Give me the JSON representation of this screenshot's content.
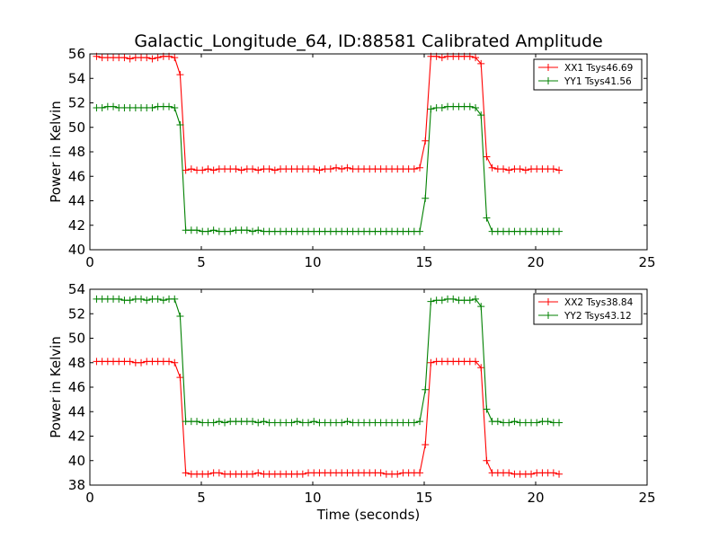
{
  "chart_data": [
    {
      "type": "line",
      "title": "Galactic_Longitude_64, ID:88581 Calibrated Amplitude",
      "xlabel": "",
      "ylabel": "Power in Kelvin",
      "xlim": [
        0,
        25
      ],
      "ylim": [
        40,
        56
      ],
      "xticks": [
        0,
        5,
        10,
        15,
        20,
        25
      ],
      "yticks": [
        40,
        42,
        44,
        46,
        48,
        50,
        52,
        54,
        56
      ],
      "grid": false,
      "legend_position": "top-right",
      "series": [
        {
          "name": "XX1 Tsys46.69",
          "color": "#ff0000",
          "marker": "+",
          "x": [
            0.3,
            0.55,
            0.8,
            1.05,
            1.3,
            1.55,
            1.8,
            2.05,
            2.3,
            2.55,
            2.8,
            3.05,
            3.3,
            3.55,
            3.8,
            4.05,
            4.3,
            4.55,
            4.8,
            5.05,
            5.3,
            5.55,
            5.8,
            6.05,
            6.3,
            6.55,
            6.8,
            7.05,
            7.3,
            7.55,
            7.8,
            8.05,
            8.3,
            8.55,
            8.8,
            9.05,
            9.3,
            9.55,
            9.8,
            10.05,
            10.3,
            10.55,
            10.8,
            11.05,
            11.3,
            11.55,
            11.8,
            12.05,
            12.3,
            12.55,
            12.8,
            13.05,
            13.3,
            13.55,
            13.8,
            14.05,
            14.3,
            14.55,
            14.8,
            15.05,
            15.3,
            15.55,
            15.8,
            16.05,
            16.3,
            16.55,
            16.8,
            17.05,
            17.3,
            17.55,
            17.8,
            18.05,
            18.3,
            18.55,
            18.8,
            19.05,
            19.3,
            19.55,
            19.8,
            20.05,
            20.3,
            20.55,
            20.8,
            21.05
          ],
          "y": [
            55.8,
            55.7,
            55.7,
            55.7,
            55.7,
            55.7,
            55.6,
            55.7,
            55.7,
            55.7,
            55.6,
            55.7,
            55.8,
            55.8,
            55.7,
            54.3,
            46.5,
            46.6,
            46.5,
            46.5,
            46.6,
            46.5,
            46.6,
            46.6,
            46.6,
            46.6,
            46.5,
            46.6,
            46.6,
            46.5,
            46.6,
            46.6,
            46.5,
            46.6,
            46.6,
            46.6,
            46.6,
            46.6,
            46.6,
            46.6,
            46.5,
            46.6,
            46.6,
            46.7,
            46.6,
            46.7,
            46.6,
            46.6,
            46.6,
            46.6,
            46.6,
            46.6,
            46.6,
            46.6,
            46.6,
            46.6,
            46.6,
            46.6,
            46.7,
            48.9,
            55.8,
            55.8,
            55.7,
            55.8,
            55.8,
            55.8,
            55.8,
            55.8,
            55.7,
            55.2,
            47.6,
            46.7,
            46.6,
            46.6,
            46.5,
            46.6,
            46.6,
            46.5,
            46.6,
            46.6,
            46.6,
            46.6,
            46.6,
            46.5
          ]
        },
        {
          "name": "YY1 Tsys41.56",
          "color": "#008000",
          "marker": "+",
          "x": [
            0.3,
            0.55,
            0.8,
            1.05,
            1.3,
            1.55,
            1.8,
            2.05,
            2.3,
            2.55,
            2.8,
            3.05,
            3.3,
            3.55,
            3.8,
            4.05,
            4.3,
            4.55,
            4.8,
            5.05,
            5.3,
            5.55,
            5.8,
            6.05,
            6.3,
            6.55,
            6.8,
            7.05,
            7.3,
            7.55,
            7.8,
            8.05,
            8.3,
            8.55,
            8.8,
            9.05,
            9.3,
            9.55,
            9.8,
            10.05,
            10.3,
            10.55,
            10.8,
            11.05,
            11.3,
            11.55,
            11.8,
            12.05,
            12.3,
            12.55,
            12.8,
            13.05,
            13.3,
            13.55,
            13.8,
            14.05,
            14.3,
            14.55,
            14.8,
            15.05,
            15.3,
            15.55,
            15.8,
            16.05,
            16.3,
            16.55,
            16.8,
            17.05,
            17.3,
            17.55,
            17.8,
            18.05,
            18.3,
            18.55,
            18.8,
            19.05,
            19.3,
            19.55,
            19.8,
            20.05,
            20.3,
            20.55,
            20.8,
            21.05
          ],
          "y": [
            51.6,
            51.6,
            51.7,
            51.7,
            51.6,
            51.6,
            51.6,
            51.6,
            51.6,
            51.6,
            51.6,
            51.7,
            51.7,
            51.7,
            51.6,
            50.2,
            41.6,
            41.6,
            41.6,
            41.5,
            41.5,
            41.6,
            41.5,
            41.5,
            41.5,
            41.6,
            41.6,
            41.6,
            41.5,
            41.6,
            41.5,
            41.5,
            41.5,
            41.5,
            41.5,
            41.5,
            41.5,
            41.5,
            41.5,
            41.5,
            41.5,
            41.5,
            41.5,
            41.5,
            41.5,
            41.5,
            41.5,
            41.5,
            41.5,
            41.5,
            41.5,
            41.5,
            41.5,
            41.5,
            41.5,
            41.5,
            41.5,
            41.5,
            41.5,
            44.2,
            51.5,
            51.6,
            51.6,
            51.7,
            51.7,
            51.7,
            51.7,
            51.7,
            51.6,
            51.0,
            42.6,
            41.5,
            41.5,
            41.5,
            41.5,
            41.5,
            41.5,
            41.5,
            41.5,
            41.5,
            41.5,
            41.5,
            41.5,
            41.5
          ]
        }
      ]
    },
    {
      "type": "line",
      "title": "",
      "xlabel": "Time (seconds)",
      "ylabel": "Power in Kelvin",
      "xlim": [
        0,
        25
      ],
      "ylim": [
        38,
        54
      ],
      "xticks": [
        0,
        5,
        10,
        15,
        20,
        25
      ],
      "yticks": [
        38,
        40,
        42,
        44,
        46,
        48,
        50,
        52,
        54
      ],
      "grid": false,
      "legend_position": "top-right",
      "series": [
        {
          "name": "XX2 Tsys38.84",
          "color": "#ff0000",
          "marker": "+",
          "x": [
            0.3,
            0.55,
            0.8,
            1.05,
            1.3,
            1.55,
            1.8,
            2.05,
            2.3,
            2.55,
            2.8,
            3.05,
            3.3,
            3.55,
            3.8,
            4.05,
            4.3,
            4.55,
            4.8,
            5.05,
            5.3,
            5.55,
            5.8,
            6.05,
            6.3,
            6.55,
            6.8,
            7.05,
            7.3,
            7.55,
            7.8,
            8.05,
            8.3,
            8.55,
            8.8,
            9.05,
            9.3,
            9.55,
            9.8,
            10.05,
            10.3,
            10.55,
            10.8,
            11.05,
            11.3,
            11.55,
            11.8,
            12.05,
            12.3,
            12.55,
            12.8,
            13.05,
            13.3,
            13.55,
            13.8,
            14.05,
            14.3,
            14.55,
            14.8,
            15.05,
            15.3,
            15.55,
            15.8,
            16.05,
            16.3,
            16.55,
            16.8,
            17.05,
            17.3,
            17.55,
            17.8,
            18.05,
            18.3,
            18.55,
            18.8,
            19.05,
            19.3,
            19.55,
            19.8,
            20.05,
            20.3,
            20.55,
            20.8,
            21.05
          ],
          "y": [
            48.1,
            48.1,
            48.1,
            48.1,
            48.1,
            48.1,
            48.1,
            48.0,
            48.0,
            48.1,
            48.1,
            48.1,
            48.1,
            48.1,
            48.0,
            46.8,
            39.0,
            38.9,
            38.9,
            38.9,
            38.9,
            39.0,
            39.0,
            38.9,
            38.9,
            38.9,
            38.9,
            38.9,
            38.9,
            39.0,
            38.9,
            38.9,
            38.9,
            38.9,
            38.9,
            38.9,
            38.9,
            38.9,
            39.0,
            39.0,
            39.0,
            39.0,
            39.0,
            39.0,
            39.0,
            39.0,
            39.0,
            39.0,
            39.0,
            39.0,
            39.0,
            39.0,
            38.9,
            38.9,
            38.9,
            39.0,
            39.0,
            39.0,
            39.0,
            41.3,
            48.0,
            48.1,
            48.1,
            48.1,
            48.1,
            48.1,
            48.1,
            48.1,
            48.1,
            47.6,
            40.0,
            39.0,
            39.0,
            39.0,
            39.0,
            38.9,
            38.9,
            38.9,
            38.9,
            39.0,
            39.0,
            39.0,
            39.0,
            38.9
          ]
        },
        {
          "name": "YY2 Tsys43.12",
          "color": "#008000",
          "marker": "+",
          "x": [
            0.3,
            0.55,
            0.8,
            1.05,
            1.3,
            1.55,
            1.8,
            2.05,
            2.3,
            2.55,
            2.8,
            3.05,
            3.3,
            3.55,
            3.8,
            4.05,
            4.3,
            4.55,
            4.8,
            5.05,
            5.3,
            5.55,
            5.8,
            6.05,
            6.3,
            6.55,
            6.8,
            7.05,
            7.3,
            7.55,
            7.8,
            8.05,
            8.3,
            8.55,
            8.8,
            9.05,
            9.3,
            9.55,
            9.8,
            10.05,
            10.3,
            10.55,
            10.8,
            11.05,
            11.3,
            11.55,
            11.8,
            12.05,
            12.3,
            12.55,
            12.8,
            13.05,
            13.3,
            13.55,
            13.8,
            14.05,
            14.3,
            14.55,
            14.8,
            15.05,
            15.3,
            15.55,
            15.8,
            16.05,
            16.3,
            16.55,
            16.8,
            17.05,
            17.3,
            17.55,
            17.8,
            18.05,
            18.3,
            18.55,
            18.8,
            19.05,
            19.3,
            19.55,
            19.8,
            20.05,
            20.3,
            20.55,
            20.8,
            21.05
          ],
          "y": [
            53.2,
            53.2,
            53.2,
            53.2,
            53.2,
            53.1,
            53.1,
            53.2,
            53.2,
            53.1,
            53.2,
            53.2,
            53.1,
            53.2,
            53.2,
            51.8,
            43.2,
            43.2,
            43.2,
            43.1,
            43.1,
            43.1,
            43.2,
            43.1,
            43.2,
            43.2,
            43.2,
            43.2,
            43.2,
            43.1,
            43.2,
            43.1,
            43.1,
            43.1,
            43.1,
            43.1,
            43.2,
            43.1,
            43.1,
            43.2,
            43.1,
            43.1,
            43.1,
            43.1,
            43.1,
            43.2,
            43.1,
            43.1,
            43.1,
            43.1,
            43.1,
            43.1,
            43.1,
            43.1,
            43.1,
            43.1,
            43.1,
            43.1,
            43.2,
            45.8,
            53.0,
            53.1,
            53.1,
            53.2,
            53.2,
            53.1,
            53.1,
            53.1,
            53.2,
            52.6,
            44.2,
            43.2,
            43.2,
            43.1,
            43.1,
            43.2,
            43.1,
            43.1,
            43.1,
            43.1,
            43.2,
            43.2,
            43.1,
            43.1
          ]
        }
      ]
    }
  ]
}
